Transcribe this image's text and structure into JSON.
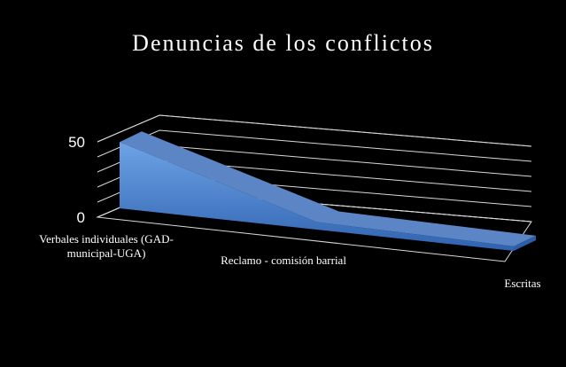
{
  "chart_data": {
    "type": "area3d",
    "title": "Denuncias de los conflictos",
    "categories": [
      "Verbales individuales (GAD-municipal-UGA)",
      "Reclamo - comisión barrial",
      "Escritas"
    ],
    "values": [
      44,
      5,
      3
    ],
    "color": "#4f81bd",
    "ylim": [
      0,
      50
    ],
    "yticks": [
      0,
      50
    ],
    "ygrid_step": 10,
    "grid": true
  }
}
